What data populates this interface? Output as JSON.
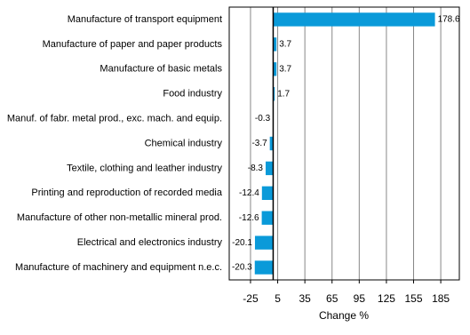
{
  "chart_data": {
    "type": "bar",
    "orientation": "horizontal",
    "categories": [
      "Manufacture of transport equipment",
      "Manufacture of paper and paper products",
      "Manufacture of basic metals",
      "Food industry",
      "Manuf. of fabr. metal prod., exc. mach. and equip.",
      "Chemical industry",
      "Textile, clothing and leather industry",
      "Printing and reproduction of recorded media",
      "Manufacture of other non-metallic mineral prod.",
      "Electrical and electronics industry",
      "Manufacture of machinery and equipment n.e.c."
    ],
    "values": [
      178.6,
      3.7,
      3.7,
      1.7,
      -0.3,
      -3.7,
      -8.3,
      -12.4,
      -12.6,
      -20.1,
      -20.3
    ],
    "color": "#0a9ad9",
    "xlabel": "Change %",
    "xlim": [
      -48.5,
      205.5
    ],
    "xticks": [
      -25,
      5,
      35,
      65,
      95,
      125,
      155,
      185
    ],
    "grid": true
  }
}
